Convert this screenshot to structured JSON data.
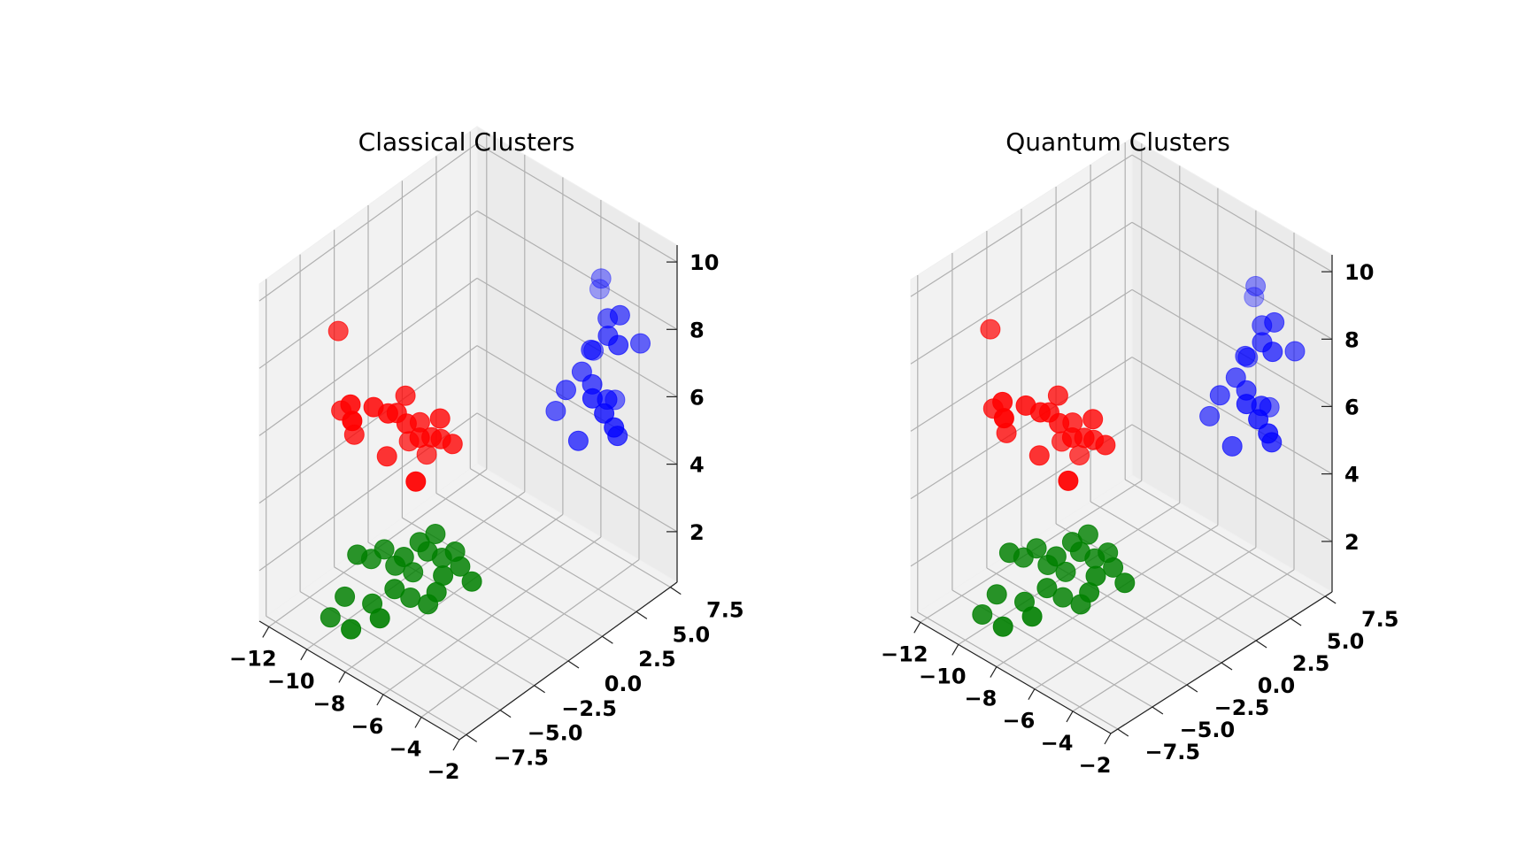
{
  "chart_data": [
    {
      "type": "scatter",
      "title": "Classical Clusters",
      "xlabel": "",
      "ylabel": "",
      "zlabel": "",
      "xlim": [
        -12.5,
        -2
      ],
      "ylim": [
        -8,
        8
      ],
      "zlim": [
        0.5,
        10.5
      ],
      "xticks": [
        "−12",
        "−10",
        "−8",
        "−6",
        "−4",
        "−2"
      ],
      "yticks": [
        "−7.5",
        "−5.0",
        "−2.5",
        "0.0",
        "2.5",
        "5.0",
        "7.5"
      ],
      "zticks": [
        "2",
        "4",
        "6",
        "8",
        "10"
      ],
      "grid": true,
      "series": [
        {
          "color": "#ff0000",
          "points": [
            [
              -10.5,
              -5.0,
              8.9
            ],
            [
              -9.5,
              -5.5,
              7.2
            ],
            [
              -9.2,
              -5.8,
              6.9
            ],
            [
              -9.0,
              -4.5,
              7.0
            ],
            [
              -8.6,
              -4.0,
              6.8
            ],
            [
              -8.5,
              -3.5,
              6.7
            ],
            [
              -8.4,
              -3.0,
              7.1
            ],
            [
              -8.2,
              -3.2,
              6.4
            ],
            [
              -8.0,
              -2.5,
              6.3
            ],
            [
              -7.8,
              -2.8,
              6.0
            ],
            [
              -7.6,
              -2.2,
              5.9
            ],
            [
              -7.4,
              -1.8,
              5.8
            ],
            [
              -7.3,
              -2.0,
              6.5
            ],
            [
              -7.0,
              -1.5,
              5.7
            ],
            [
              -9.8,
              -4.8,
              6.0
            ],
            [
              -10.2,
              -5.2,
              6.7
            ],
            [
              -8.8,
              -3.8,
              5.4
            ],
            [
              -8.0,
              -2.0,
              5.2
            ],
            [
              -7.5,
              -3.5,
              5.0
            ],
            [
              -8.5,
              -2.6,
              5.6
            ]
          ]
        },
        {
          "color": "#0000ff",
          "points": [
            [
              -4.2,
              5.5,
              9.5
            ],
            [
              -4.5,
              5.8,
              9.0
            ],
            [
              -3.5,
              5.0,
              8.7
            ],
            [
              -3.2,
              4.6,
              8.4
            ],
            [
              -3.0,
              5.2,
              8.9
            ],
            [
              -2.8,
              4.8,
              8.2
            ],
            [
              -2.5,
              6.0,
              8.0
            ],
            [
              -3.8,
              4.2,
              7.9
            ],
            [
              -4.0,
              3.8,
              7.3
            ],
            [
              -3.6,
              4.0,
              7.0
            ],
            [
              -3.3,
              3.6,
              6.8
            ],
            [
              -3.1,
              4.4,
              6.6
            ],
            [
              -2.9,
              3.9,
              6.4
            ],
            [
              -2.6,
              4.2,
              6.0
            ],
            [
              -4.4,
              3.2,
              6.8
            ],
            [
              -4.8,
              3.0,
              6.1
            ],
            [
              -3.9,
              3.4,
              5.4
            ],
            [
              -3.4,
              5.4,
              6.2
            ],
            [
              -2.7,
              4.6,
              5.6
            ],
            [
              -4.1,
              4.8,
              7.6
            ]
          ]
        },
        {
          "color": "#008000",
          "points": [
            [
              -9.5,
              -5.0,
              2.6
            ],
            [
              -9.2,
              -4.4,
              2.4
            ],
            [
              -8.8,
              -4.0,
              2.7
            ],
            [
              -8.5,
              -3.6,
              2.2
            ],
            [
              -8.2,
              -3.4,
              2.5
            ],
            [
              -8.0,
              -3.0,
              2.0
            ],
            [
              -7.8,
              -2.8,
              2.9
            ],
            [
              -7.6,
              -2.5,
              2.6
            ],
            [
              -7.4,
              -2.2,
              3.1
            ],
            [
              -7.2,
              -2.0,
              2.4
            ],
            [
              -7.0,
              -2.2,
              2.0
            ],
            [
              -6.8,
              -1.6,
              2.6
            ],
            [
              -6.6,
              -1.5,
              2.2
            ],
            [
              -9.8,
              -5.5,
              1.4
            ],
            [
              -9.0,
              -4.6,
              1.2
            ],
            [
              -8.4,
              -3.8,
              1.6
            ],
            [
              -8.0,
              -3.2,
              1.3
            ],
            [
              -7.5,
              -2.6,
              1.1
            ],
            [
              -7.2,
              -2.4,
              1.5
            ],
            [
              -10.2,
              -6.0,
              0.8
            ],
            [
              -9.4,
              -5.6,
              0.6
            ],
            [
              -8.6,
              -4.6,
              0.9
            ],
            [
              -6.2,
              -1.2,
              1.8
            ]
          ]
        }
      ]
    },
    {
      "type": "scatter",
      "title": "Quantum Clusters",
      "xlabel": "",
      "ylabel": "",
      "zlabel": "",
      "xlim": [
        -12.5,
        -2
      ],
      "ylim": [
        -8,
        8
      ],
      "zlim": [
        0.5,
        10.5
      ],
      "xticks": [
        "−12",
        "−10",
        "−8",
        "−6",
        "−4",
        "−2"
      ],
      "yticks": [
        "−7.5",
        "−5.0",
        "−2.5",
        "0.0",
        "2.5",
        "5.0",
        "7.5"
      ],
      "zticks": [
        "2",
        "4",
        "6",
        "8",
        "10"
      ],
      "grid": true,
      "series": [
        {
          "color": "#ff0000",
          "points": [
            [
              -10.5,
              -5.0,
              8.9
            ],
            [
              -9.5,
              -5.5,
              7.2
            ],
            [
              -9.2,
              -5.8,
              6.9
            ],
            [
              -9.0,
              -4.5,
              7.0
            ],
            [
              -8.6,
              -4.0,
              6.8
            ],
            [
              -8.5,
              -3.5,
              6.7
            ],
            [
              -8.4,
              -3.0,
              7.1
            ],
            [
              -8.2,
              -3.2,
              6.4
            ],
            [
              -8.0,
              -2.5,
              6.3
            ],
            [
              -7.8,
              -2.8,
              6.0
            ],
            [
              -7.6,
              -2.2,
              5.9
            ],
            [
              -7.4,
              -1.8,
              5.8
            ],
            [
              -7.3,
              -2.0,
              6.5
            ],
            [
              -7.0,
              -1.5,
              5.7
            ],
            [
              -9.8,
              -4.8,
              6.0
            ],
            [
              -10.2,
              -5.2,
              6.7
            ],
            [
              -8.8,
              -3.8,
              5.4
            ],
            [
              -8.0,
              -2.0,
              5.2
            ],
            [
              -7.5,
              -3.5,
              5.0
            ],
            [
              -8.5,
              -2.6,
              5.6
            ]
          ]
        },
        {
          "color": "#0000ff",
          "points": [
            [
              -4.2,
              5.5,
              9.5
            ],
            [
              -4.5,
              5.8,
              9.0
            ],
            [
              -3.5,
              5.0,
              8.7
            ],
            [
              -3.2,
              4.6,
              8.4
            ],
            [
              -3.0,
              5.2,
              8.9
            ],
            [
              -2.8,
              4.8,
              8.2
            ],
            [
              -2.5,
              6.0,
              8.0
            ],
            [
              -3.8,
              4.2,
              7.9
            ],
            [
              -4.0,
              3.8,
              7.3
            ],
            [
              -3.6,
              4.0,
              7.0
            ],
            [
              -3.3,
              3.6,
              6.8
            ],
            [
              -3.1,
              4.4,
              6.6
            ],
            [
              -2.9,
              3.9,
              6.4
            ],
            [
              -2.6,
              4.2,
              6.0
            ],
            [
              -4.4,
              3.2,
              6.8
            ],
            [
              -4.8,
              3.0,
              6.1
            ],
            [
              -3.9,
              3.4,
              5.4
            ],
            [
              -3.4,
              5.4,
              6.2
            ],
            [
              -2.7,
              4.6,
              5.6
            ],
            [
              -4.1,
              4.8,
              7.6
            ]
          ]
        },
        {
          "color": "#008000",
          "points": [
            [
              -9.5,
              -5.0,
              2.6
            ],
            [
              -9.2,
              -4.4,
              2.4
            ],
            [
              -8.8,
              -4.0,
              2.7
            ],
            [
              -8.5,
              -3.6,
              2.2
            ],
            [
              -8.2,
              -3.4,
              2.5
            ],
            [
              -8.0,
              -3.0,
              2.0
            ],
            [
              -7.8,
              -2.8,
              2.9
            ],
            [
              -7.6,
              -2.5,
              2.6
            ],
            [
              -7.4,
              -2.2,
              3.1
            ],
            [
              -7.2,
              -2.0,
              2.4
            ],
            [
              -7.0,
              -2.2,
              2.0
            ],
            [
              -6.8,
              -1.6,
              2.6
            ],
            [
              -6.6,
              -1.5,
              2.2
            ],
            [
              -9.8,
              -5.5,
              1.4
            ],
            [
              -9.0,
              -4.6,
              1.2
            ],
            [
              -8.4,
              -3.8,
              1.6
            ],
            [
              -8.0,
              -3.2,
              1.3
            ],
            [
              -7.5,
              -2.6,
              1.1
            ],
            [
              -7.2,
              -2.4,
              1.5
            ],
            [
              -10.2,
              -6.0,
              0.8
            ],
            [
              -9.4,
              -5.6,
              0.6
            ],
            [
              -8.6,
              -4.6,
              0.9
            ],
            [
              -6.2,
              -1.2,
              1.8
            ]
          ]
        }
      ]
    }
  ]
}
